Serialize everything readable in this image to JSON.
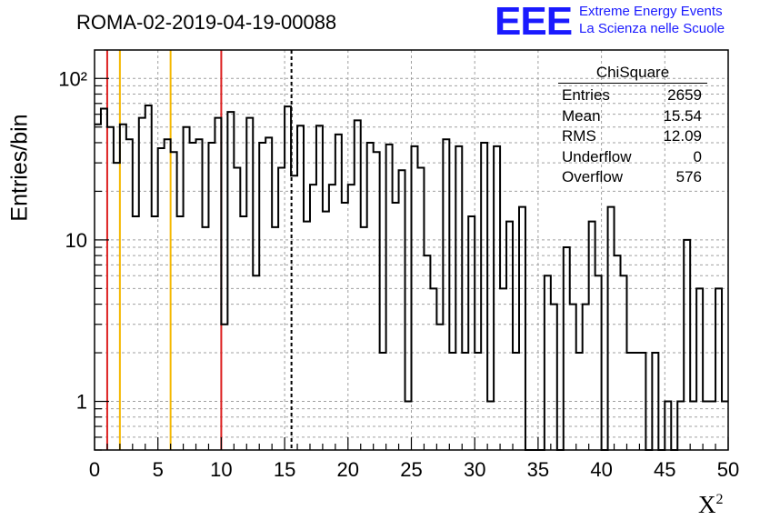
{
  "header": {
    "title": "ROMA-02-2019-04-19-00088",
    "logo_text": "EEE",
    "logo_line1": "Extreme Energy Events",
    "logo_line2": "La Scienza nelle Scuole"
  },
  "stats_box": {
    "title": "ChiSquare",
    "rows": [
      {
        "label": "Entries",
        "value": "2659"
      },
      {
        "label": "Mean",
        "value": "15.54"
      },
      {
        "label": "RMS",
        "value": "12.09"
      },
      {
        "label": "Underflow",
        "value": "0"
      },
      {
        "label": "Overflow",
        "value": "576"
      }
    ]
  },
  "colors": {
    "red": "#dd2020",
    "gold": "#f5b800",
    "logo_blue": "#1a1aff"
  },
  "chart_data": {
    "type": "histogram",
    "title": "ROMA-02-2019-04-19-00088",
    "xlabel": "X",
    "xlabel_superscript": "2",
    "ylabel": "Entries/bin",
    "yscale": "log",
    "xlim": [
      0,
      50
    ],
    "ylim": [
      0.5,
      150
    ],
    "bin_width": 0.5,
    "grid": true,
    "x_ticks": [
      0,
      5,
      10,
      15,
      20,
      25,
      30,
      35,
      40,
      45,
      50
    ],
    "y_ticks": [
      {
        "value": 1,
        "label": "1"
      },
      {
        "value": 10,
        "label": "10"
      },
      {
        "value": 100,
        "label": "10²"
      }
    ],
    "vertical_lines": [
      {
        "x": 1,
        "color": "red",
        "style": "solid"
      },
      {
        "x": 2,
        "color": "gold",
        "style": "solid"
      },
      {
        "x": 6,
        "color": "gold",
        "style": "solid"
      },
      {
        "x": 10,
        "color": "red",
        "style": "solid"
      },
      {
        "x": 15.54,
        "color": "black",
        "style": "dashed"
      }
    ],
    "values": [
      52,
      65,
      50,
      30,
      52,
      42,
      14,
      57,
      68,
      14,
      37,
      42,
      35,
      14,
      50,
      40,
      42,
      12,
      40,
      57,
      3,
      62,
      28,
      14,
      57,
      6,
      40,
      43,
      12,
      28,
      67,
      25,
      51,
      13,
      22,
      51,
      15,
      22,
      45,
      17,
      22,
      55,
      12,
      40,
      35,
      2,
      39,
      17,
      27,
      1,
      38,
      28,
      8,
      5,
      3,
      42,
      2,
      38,
      2,
      14,
      2,
      40,
      1,
      38,
      5,
      13,
      2,
      16,
      0.5,
      0,
      0.5,
      6,
      4,
      0.5,
      9,
      4,
      2,
      4,
      13,
      6,
      0.5,
      16,
      8,
      6,
      2,
      2,
      2,
      0.5,
      2,
      0.5,
      1,
      0.5,
      1,
      10,
      1,
      5,
      1,
      1,
      5,
      1
    ]
  }
}
